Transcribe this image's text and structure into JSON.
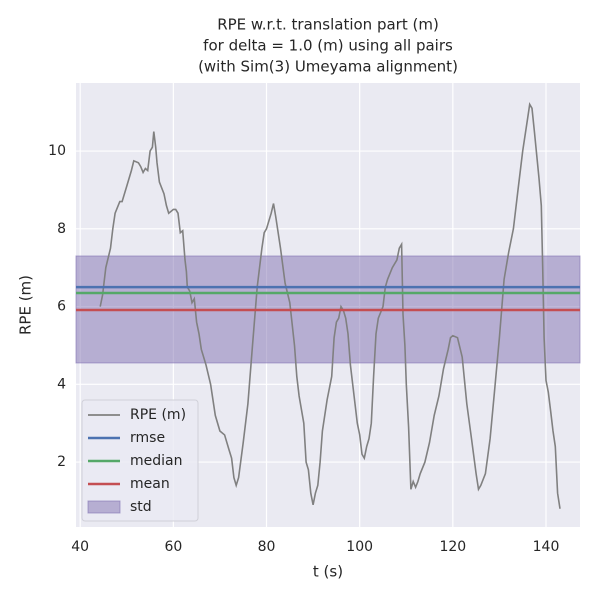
{
  "chart_data": {
    "type": "line",
    "title": [
      "RPE w.r.t. translation part (m)",
      "for delta = 1.0 (m) using all pairs",
      "(with Sim(3) Umeyama alignment)"
    ],
    "xlabel": "t (s)",
    "ylabel": "RPE (m)",
    "xlim": [
      39.1,
      147.3
    ],
    "ylim": [
      0.33,
      11.75
    ],
    "xticks": [
      40,
      60,
      80,
      100,
      120,
      140
    ],
    "yticks": [
      2,
      4,
      6,
      8,
      10
    ],
    "grid": true,
    "legend": "lower left",
    "x": [
      44.3,
      44.8,
      45.5,
      46.5,
      47,
      47.5,
      48.5,
      49,
      50,
      51,
      51.5,
      52.5,
      53,
      53.5,
      54,
      54.5,
      55,
      55.5,
      55.8,
      56.2,
      56.5,
      57,
      58,
      58.5,
      59,
      60,
      60.5,
      61,
      61.5,
      62,
      62.5,
      62.8,
      63,
      63.5,
      64,
      64.5,
      65,
      65.5,
      66,
      67,
      68,
      69,
      70,
      71,
      72,
      72.5,
      73,
      73.5,
      74,
      75,
      76,
      77,
      78,
      79,
      79.5,
      80,
      81,
      81.5,
      82,
      83,
      84,
      85,
      86,
      86.5,
      87,
      88,
      88.5,
      89,
      89.5,
      90,
      90.5,
      91,
      91.5,
      92,
      93,
      94,
      94.5,
      95,
      95.5,
      96,
      96.5,
      97,
      97.5,
      98,
      99,
      99.5,
      100,
      100.5,
      101,
      101.5,
      102,
      102.5,
      103,
      103.5,
      104,
      105,
      105.5,
      106,
      107,
      108,
      108.5,
      109,
      109.3,
      109.7,
      110,
      110.5,
      111,
      111.5,
      112,
      112.5,
      113,
      114,
      115,
      116,
      117,
      118,
      119,
      119.5,
      120,
      121,
      122,
      123,
      124,
      125,
      125.5,
      126,
      127,
      128,
      129,
      130,
      131,
      132,
      133,
      134,
      135,
      136,
      136.5,
      137,
      137.5,
      138,
      138.5,
      139,
      139.3,
      139.6,
      140,
      140.5,
      141,
      141.5,
      142,
      142.5,
      143
    ],
    "series": [
      {
        "name": "RPE (m)",
        "color": "#808080",
        "values": [
          6.0,
          6.3,
          7.0,
          7.5,
          8.0,
          8.4,
          8.7,
          8.7,
          9.1,
          9.5,
          9.75,
          9.7,
          9.6,
          9.45,
          9.55,
          9.5,
          10.0,
          10.1,
          10.5,
          10.1,
          9.7,
          9.2,
          8.9,
          8.6,
          8.4,
          8.5,
          8.5,
          8.4,
          7.9,
          7.95,
          7.2,
          6.9,
          6.5,
          6.4,
          6.1,
          6.2,
          5.6,
          5.3,
          4.9,
          4.5,
          4.0,
          3.2,
          2.8,
          2.7,
          2.3,
          2.1,
          1.6,
          1.4,
          1.6,
          2.5,
          3.5,
          5.0,
          6.5,
          7.5,
          7.9,
          8.0,
          8.4,
          8.65,
          8.3,
          7.5,
          6.6,
          6.1,
          5.0,
          4.2,
          3.7,
          3.0,
          2.0,
          1.8,
          1.2,
          0.9,
          1.2,
          1.4,
          2.0,
          2.8,
          3.6,
          4.2,
          5.2,
          5.6,
          5.7,
          6.0,
          5.9,
          5.7,
          5.3,
          4.5,
          3.5,
          3.0,
          2.7,
          2.2,
          2.1,
          2.4,
          2.6,
          3.0,
          4.2,
          5.3,
          5.7,
          6.0,
          6.5,
          6.7,
          7.0,
          7.2,
          7.5,
          7.6,
          5.8,
          5.0,
          4.0,
          2.9,
          1.3,
          1.5,
          1.35,
          1.5,
          1.7,
          2.0,
          2.5,
          3.2,
          3.7,
          4.4,
          4.9,
          5.2,
          5.25,
          5.2,
          4.7,
          3.5,
          2.6,
          1.7,
          1.3,
          1.4,
          1.7,
          2.6,
          3.9,
          5.2,
          6.7,
          7.4,
          8.0,
          9.0,
          10.0,
          10.8,
          11.2,
          11.1,
          10.5,
          9.9,
          9.3,
          8.6,
          7.0,
          5.2,
          4.1,
          3.8,
          3.3,
          2.8,
          2.4,
          1.2,
          0.8
        ]
      }
    ],
    "stats": [
      {
        "name": "rmse",
        "color": "#4c72b0",
        "value": 6.5
      },
      {
        "name": "median",
        "color": "#55a868",
        "value": 6.35
      },
      {
        "name": "mean",
        "color": "#c44e52",
        "value": 5.91
      }
    ],
    "std": {
      "name": "std",
      "color": "#8172b2",
      "range": [
        4.55,
        7.3
      ]
    }
  }
}
